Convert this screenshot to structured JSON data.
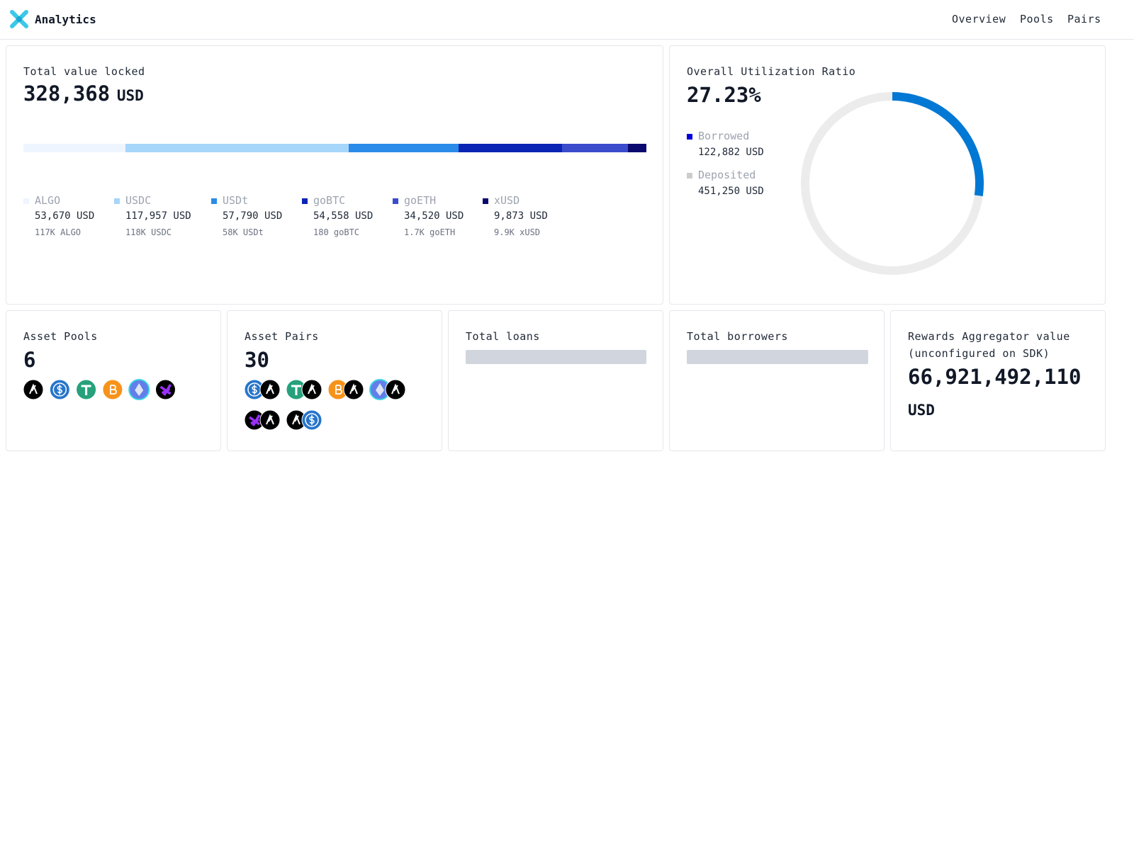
{
  "header": {
    "title": "Analytics",
    "nav": [
      "Overview",
      "Pools",
      "Pairs"
    ]
  },
  "tvl": {
    "title": "Total value locked",
    "total": 328368,
    "total_label": "328,368",
    "unit": "USD",
    "assets": [
      {
        "name": "ALGO",
        "color": "#eef5ff",
        "value": 53670,
        "value_label": "53,670 USD",
        "amount": "117K ALGO"
      },
      {
        "name": "USDC",
        "color": "#a6d6fa",
        "value": 117957,
        "value_label": "117,957 USD",
        "amount": "118K USDC"
      },
      {
        "name": "USDt",
        "color": "#2a8be8",
        "value": 57790,
        "value_label": "57,790 USD",
        "amount": "58K USDt"
      },
      {
        "name": "goBTC",
        "color": "#0a24b4",
        "value": 54558,
        "value_label": "54,558 USD",
        "amount": "180 goBTC"
      },
      {
        "name": "goETH",
        "color": "#3a4ccc",
        "value": 34520,
        "value_label": "34,520 USD",
        "amount": "1.7K goETH"
      },
      {
        "name": "xUSD",
        "color": "#0a0a6e",
        "value": 9873,
        "value_label": "9,873 USD",
        "amount": "9.9K xUSD"
      }
    ]
  },
  "utilization": {
    "title": "Overall Utilization Ratio",
    "ratio": 27.23,
    "ratio_label": "27.23%",
    "color": "#0078d4",
    "borrowed": {
      "name": "Borrowed",
      "color": "#0000dd",
      "value_label": "122,882 USD"
    },
    "deposited": {
      "name": "Deposited",
      "color": "#cccccc",
      "value_label": "451,250 USD"
    }
  },
  "cards": {
    "asset_pools": {
      "title": "Asset Pools",
      "value": "6"
    },
    "asset_pairs": {
      "title": "Asset Pairs",
      "value": "30"
    },
    "total_loans": {
      "title": "Total loans"
    },
    "total_borrowers": {
      "title": "Total borrowers"
    },
    "rewards": {
      "title": "Rewards Aggregator value (unconfigured on SDK)",
      "value": "66,921,492,110",
      "unit": "USD"
    }
  }
}
